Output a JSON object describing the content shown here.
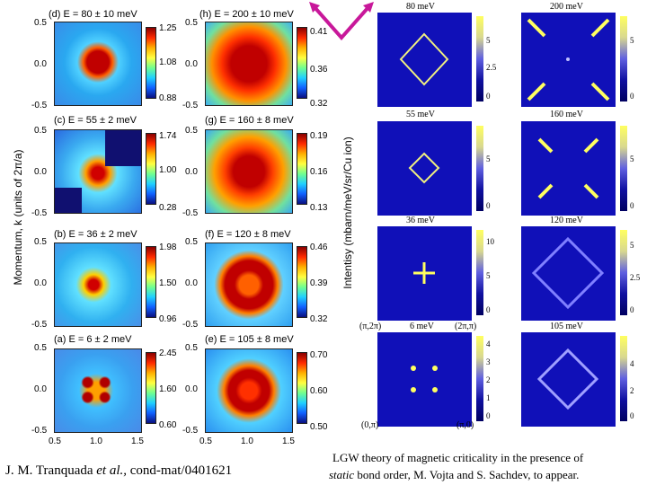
{
  "left_figure": {
    "y_axis_label": "Momentum, k (units of 2π/a)",
    "y_ticks": [
      "0.5",
      "0.0",
      "-0.5"
    ],
    "x_ticks": [
      "0.5",
      "1.0",
      "1.5"
    ],
    "panels": [
      {
        "label": "(d) E = 80 ± 10 meV",
        "cbar": [
          "1.25",
          "1.08",
          "0.88"
        ]
      },
      {
        "label": "(c) E = 55 ± 2 meV",
        "cbar": [
          "1.74",
          "1.00",
          "0.28"
        ]
      },
      {
        "label": "(b) E = 36 ± 2 meV",
        "cbar": [
          "1.98",
          "1.50",
          "0.96"
        ]
      },
      {
        "label": "(a) E = 6 ± 2 meV",
        "cbar": [
          "2.45",
          "1.60",
          "0.60"
        ]
      },
      {
        "label": "(h) E = 200 ± 10 meV",
        "cbar": [
          "0.41",
          "0.36",
          "0.32"
        ]
      },
      {
        "label": "(g) E = 160 ± 8 meV",
        "cbar": [
          "0.19",
          "0.16",
          "0.13"
        ]
      },
      {
        "label": "(f) E = 120 ± 8 meV",
        "cbar": [
          "0.46",
          "0.39",
          "0.32"
        ]
      },
      {
        "label": "(e) E = 105 ± 8 meV",
        "cbar": [
          "0.70",
          "0.60",
          "0.50"
        ]
      }
    ],
    "intensity_label": "Intentisy (mbarn/meV/sr/Cu ion)"
  },
  "right_figure": {
    "panels": [
      {
        "label": "80 meV",
        "cbar": [
          "5",
          "2.5",
          "0"
        ]
      },
      {
        "label": "55 meV",
        "cbar": [
          "5",
          "0"
        ]
      },
      {
        "label": "36 meV",
        "cbar": [
          "10",
          "5",
          "0"
        ]
      },
      {
        "label": "6 meV",
        "cbar": [
          "4",
          "3",
          "2",
          "1",
          "0"
        ]
      },
      {
        "label": "200 meV",
        "cbar": [
          "5",
          "0"
        ]
      },
      {
        "label": "160 meV",
        "cbar": [
          "5",
          "0"
        ]
      },
      {
        "label": "120 meV",
        "cbar": [
          "5",
          "2.5",
          "0"
        ]
      },
      {
        "label": "105 meV",
        "cbar": [
          "4",
          "2",
          "0"
        ]
      }
    ],
    "corner_labels": {
      "top_left": "(π,2π)",
      "top_right": "(2π,π)",
      "bottom_left": "(0,π)",
      "bottom_right": "(π,0)"
    }
  },
  "captions": {
    "left_citation_pre": "J. M. Tranquada ",
    "left_citation_italic": "et al.,",
    "left_citation_post": " cond-mat/0401621",
    "right_line1": "LGW theory of magnetic criticality in the presence of",
    "right_line2_italic": "static",
    "right_line2_rest": " bond order, M. Vojta and S. Sachdev, to appear."
  },
  "colors": {
    "magenta_arrow": "#c8189a",
    "caption_text": "#000000"
  }
}
